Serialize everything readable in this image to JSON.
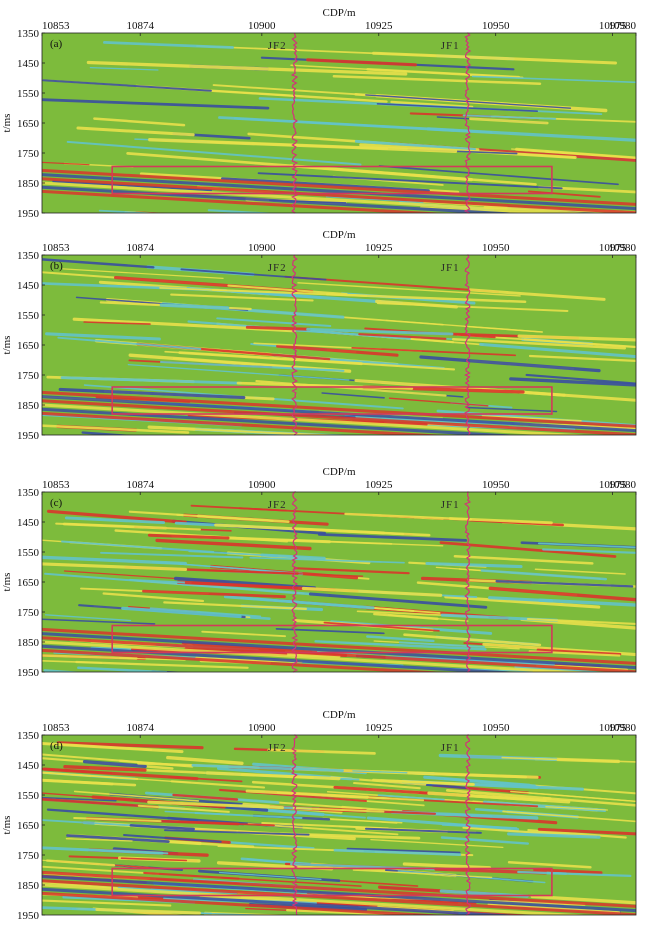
{
  "chart_data": [
    {
      "type": "heatmap",
      "panel_label": "(a)",
      "xlabel": "CDP/m",
      "ylabel": "t/ms",
      "xlim": [
        10853,
        10980
      ],
      "ylim": [
        1950,
        1350
      ],
      "x_ticks": [
        "10853",
        "10874",
        "10900",
        "10925",
        "10950",
        "10975",
        "10980"
      ],
      "y_ticks": [
        "1350",
        "1450",
        "1550",
        "1650",
        "1750",
        "1850",
        "1950"
      ],
      "wells": [
        {
          "name": "JF2",
          "cdp": 10907
        },
        {
          "name": "JF1",
          "cdp": 10944
        }
      ],
      "highlight_box": {
        "cdp_start": 10868,
        "cdp_end": 10962,
        "t_start": 1795,
        "t_end": 1885
      }
    },
    {
      "type": "heatmap",
      "panel_label": "(b)",
      "xlabel": "CDP/m",
      "ylabel": "t/ms",
      "xlim": [
        10853,
        10980
      ],
      "ylim": [
        1950,
        1350
      ],
      "x_ticks": [
        "10853",
        "10874",
        "10900",
        "10925",
        "10950",
        "10975",
        "10980"
      ],
      "y_ticks": [
        "1350",
        "1450",
        "1550",
        "1650",
        "1750",
        "1850",
        "1950"
      ],
      "wells": [
        {
          "name": "JF2",
          "cdp": 10907
        },
        {
          "name": "JF1",
          "cdp": 10944
        }
      ],
      "highlight_box": {
        "cdp_start": 10868,
        "cdp_end": 10962,
        "t_start": 1790,
        "t_end": 1880
      }
    },
    {
      "type": "heatmap",
      "panel_label": "(c)",
      "xlabel": "CDP/m",
      "ylabel": "t/ms",
      "xlim": [
        10853,
        10980
      ],
      "ylim": [
        1950,
        1350
      ],
      "x_ticks": [
        "10853",
        "10874",
        "10900",
        "10925",
        "10950",
        "10975",
        "10980"
      ],
      "y_ticks": [
        "1350",
        "1450",
        "1550",
        "1650",
        "1750",
        "1850",
        "1950"
      ],
      "wells": [
        {
          "name": "JF2",
          "cdp": 10907
        },
        {
          "name": "JF1",
          "cdp": 10944
        }
      ],
      "highlight_box": {
        "cdp_start": 10868,
        "cdp_end": 10962,
        "t_start": 1795,
        "t_end": 1885
      }
    },
    {
      "type": "heatmap",
      "panel_label": "(d)",
      "xlabel": "CDP/m",
      "ylabel": "t/ms",
      "xlim": [
        10853,
        10980
      ],
      "ylim": [
        1950,
        1350
      ],
      "x_ticks": [
        "10853",
        "10874",
        "10900",
        "10925",
        "10950",
        "10975",
        "10980"
      ],
      "y_ticks": [
        "1350",
        "1450",
        "1550",
        "1650",
        "1750",
        "1850",
        "1950"
      ],
      "wells": [
        {
          "name": "JF2",
          "cdp": 10907
        },
        {
          "name": "JF1",
          "cdp": 10944
        }
      ],
      "highlight_box": {
        "cdp_start": 10868,
        "cdp_end": 10962,
        "t_start": 1795,
        "t_end": 1885
      }
    }
  ],
  "colors": {
    "background": "#7dbb3c",
    "yellow": "#e8e04a",
    "red": "#d9362b",
    "blue": "#3a4fa0",
    "cyan": "#63c3c8",
    "well_log": "#d4307a",
    "box": "#d23a5a"
  }
}
